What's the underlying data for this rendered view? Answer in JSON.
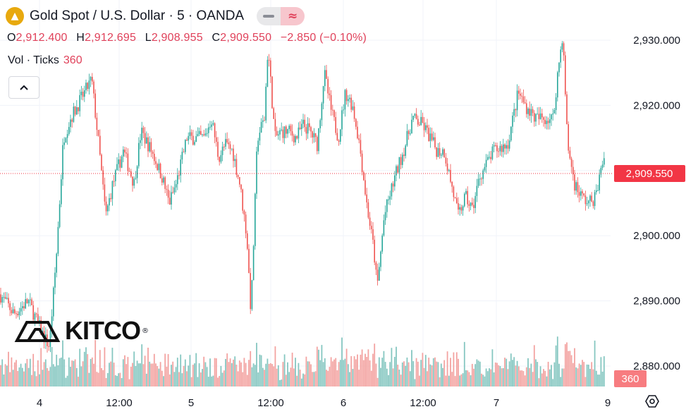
{
  "header": {
    "symbol_icon": "gold-bars-icon",
    "title": "Gold Spot / U.S. Dollar · 5 · OANDA",
    "ohlc": {
      "o_label": "O",
      "o_value": "2,912.400",
      "h_label": "H",
      "h_value": "2,912.695",
      "l_label": "L",
      "l_value": "2,908.955",
      "c_label": "C",
      "c_value": "2,909.550",
      "change": "−2.850 (−0.10%)"
    },
    "volume_label": "Vol · Ticks",
    "volume_value": "360"
  },
  "watermark": {
    "text": "KITCO",
    "mark": "®"
  },
  "colors": {
    "up": "#26a69a",
    "down": "#ef5350",
    "up_vol": "#86c7c1",
    "down_vol": "#f3a3a1",
    "grid": "#f0f3fa",
    "price_tag": "#f23645"
  },
  "chart_data": {
    "type": "candlestick",
    "title": "Gold Spot / U.S. Dollar · 5 · OANDA",
    "interval": "5",
    "y_ticks": [
      "2,880.000",
      "2,890.000",
      "2,900.000",
      "2,910.000",
      "2,920.000",
      "2,930.000"
    ],
    "y_tick_values": [
      2880,
      2890,
      2900,
      2910,
      2920,
      2930
    ],
    "ylim": [
      2877,
      2935
    ],
    "x_ticks": [
      "4",
      "12:00",
      "5",
      "12:00",
      "6",
      "12:00",
      "7",
      "9"
    ],
    "last_price_label": "2,909.550",
    "last_price": 2909.55,
    "last_volume_label": "360",
    "last_volume": 360,
    "grid": true,
    "close_path": {
      "x": [
        0,
        20,
        40,
        60,
        70,
        80,
        90,
        100,
        115,
        130,
        140,
        150,
        160,
        175,
        190,
        200,
        215,
        230,
        240,
        250,
        265,
        280,
        290,
        300,
        310,
        320,
        330,
        340,
        350,
        356,
        365,
        375,
        380,
        390,
        400,
        410,
        420,
        430,
        440,
        450,
        460,
        470,
        480,
        490,
        500,
        510,
        520,
        530,
        535,
        545,
        560,
        575,
        585,
        600,
        620,
        630,
        640,
        650,
        660,
        670,
        680,
        700,
        720,
        735,
        745,
        760,
        775,
        785,
        790,
        798,
        805,
        815,
        825,
        835,
        845,
        858
      ],
      "y": [
        2891,
        2888,
        2890,
        2885,
        2883,
        2897,
        2915,
        2918,
        2921,
        2924,
        2914,
        2903,
        2908,
        2913,
        2908,
        2916,
        2913,
        2909,
        2905,
        2908,
        2915,
        2915,
        2915,
        2918,
        2912,
        2914,
        2913,
        2908,
        2900,
        2888,
        2915,
        2918,
        2929,
        2915,
        2916,
        2916,
        2915,
        2917,
        2916,
        2914,
        2925,
        2919,
        2915,
        2922,
        2920,
        2914,
        2905,
        2898,
        2892,
        2903,
        2909,
        2914,
        2918,
        2917,
        2913,
        2913,
        2908,
        2903,
        2906,
        2904,
        2909,
        2913,
        2914,
        2922,
        2920,
        2918,
        2918,
        2918,
        2924,
        2931,
        2914,
        2908,
        2906,
        2905,
        2906,
        2913
      ]
    },
    "volume_scale_max": 6000
  }
}
